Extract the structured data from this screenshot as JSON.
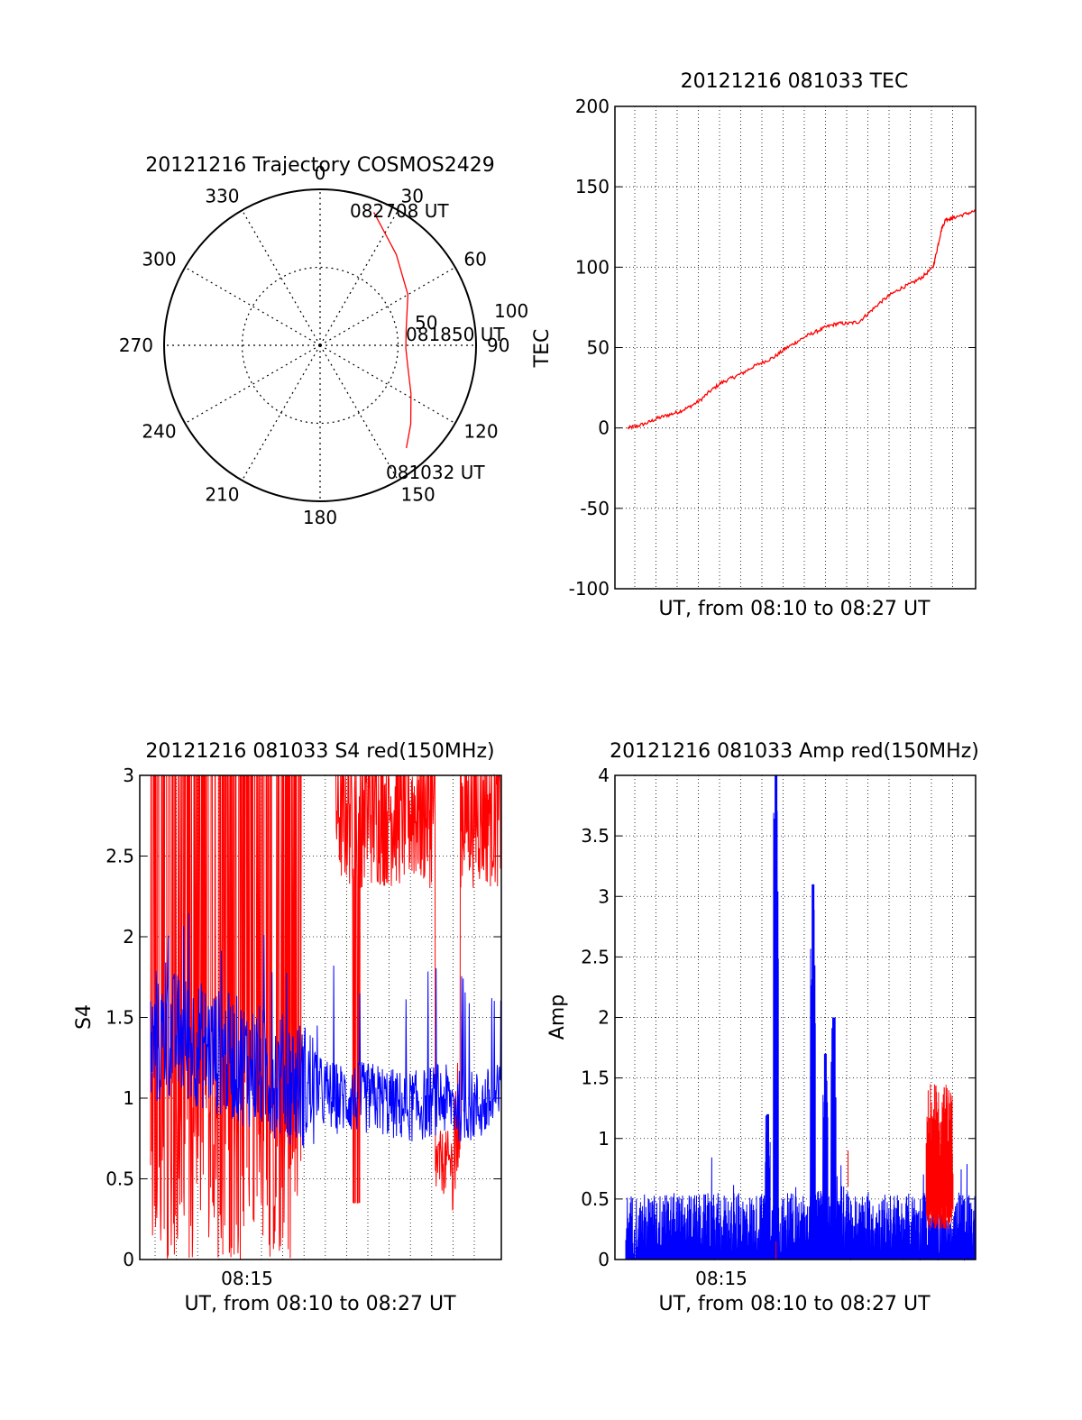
{
  "chart_data": [
    {
      "id": "trajectory",
      "type": "polar",
      "title": "20121216 Trajectory COSMOS2429",
      "angle_labels": [
        "0",
        "30",
        "60",
        "90",
        "120",
        "150",
        "180",
        "210",
        "240",
        "270",
        "300",
        "330"
      ],
      "radial_labels": [
        "50",
        "100"
      ],
      "rmax": 100,
      "trajectory": [
        {
          "az": 22,
          "r": 92
        },
        {
          "az": 40,
          "r": 76
        },
        {
          "az": 60,
          "r": 65
        },
        {
          "az": 80,
          "r": 56
        },
        {
          "az": 92,
          "r": 55
        },
        {
          "az": 104,
          "r": 58
        },
        {
          "az": 118,
          "r": 66
        },
        {
          "az": 131,
          "r": 77
        },
        {
          "az": 140,
          "r": 86
        }
      ],
      "annotations": [
        {
          "text": "082708 UT",
          "at": "end"
        },
        {
          "text": "081850 UT",
          "at": "middle"
        },
        {
          "text": "081032 UT",
          "at": "start"
        }
      ],
      "line_color": "#ff0000"
    },
    {
      "id": "tec",
      "type": "line",
      "title": "20121216 081033 TEC",
      "ylabel": "TEC",
      "xlabel": "UT, from 08:10 to 08:27 UT",
      "ylim": [
        -100,
        200
      ],
      "yticks": [
        "200",
        "150",
        "100",
        "50",
        "0",
        "-50",
        "-100"
      ],
      "xlim_minutes": [
        0,
        17
      ],
      "grid": true,
      "series": [
        {
          "color": "#ff0000",
          "x": [
            0.6,
            1.0,
            1.5,
            2.0,
            2.5,
            3.0,
            3.5,
            4.0,
            4.5,
            5.0,
            5.5,
            6.0,
            6.5,
            7.0,
            7.5,
            8.0,
            8.5,
            9.0,
            9.5,
            10.0,
            10.5,
            11.0,
            11.5,
            12.0,
            12.5,
            13.0,
            13.5,
            14.0,
            14.5,
            15.0,
            15.2,
            15.4,
            15.6,
            15.8,
            16.0,
            16.5,
            17.0
          ],
          "values": [
            0,
            1,
            3,
            6,
            8,
            10,
            13,
            17,
            23,
            28,
            31,
            34,
            38,
            41,
            44,
            49,
            53,
            57,
            60,
            63,
            65,
            65,
            66,
            72,
            78,
            83,
            87,
            90,
            94,
            100,
            112,
            124,
            130,
            130,
            131,
            133,
            135
          ]
        }
      ]
    },
    {
      "id": "s4",
      "type": "line",
      "title": "20121216 081033 S4 red(150MHz)",
      "ylabel": "S4",
      "xlabel": "UT, from 08:10 to 08:27 UT",
      "xtick_labels": [
        "08:15"
      ],
      "ylim": [
        0,
        3
      ],
      "yticks": [
        "3",
        "2.5",
        "2",
        "1.5",
        "1",
        "0.5",
        "0"
      ],
      "xlim_minutes": [
        0,
        17
      ],
      "grid": true,
      "series": [
        {
          "color": "#ff0000",
          "x": [
            0,
            1,
            2,
            3,
            4,
            5,
            6,
            7,
            8,
            9,
            10,
            11,
            12,
            13,
            14,
            15,
            16,
            17
          ],
          "values": [
            3,
            3,
            3,
            3,
            3,
            3,
            3,
            2,
            2.5,
            2.5,
            2.5,
            2.5,
            2.5,
            2.5,
            0.5,
            2.5,
            2.5,
            2.5
          ]
        },
        {
          "color": "#0000ff",
          "x": [
            0,
            1,
            2,
            3,
            4,
            5,
            6,
            7,
            8,
            9,
            10,
            11,
            12,
            13,
            14,
            15,
            16,
            17
          ],
          "values": [
            1.3,
            1.4,
            1.35,
            1.3,
            1.25,
            1.2,
            1.15,
            1.1,
            1.05,
            1.0,
            1.0,
            1.0,
            0.95,
            0.95,
            1.0,
            0.95,
            0.95,
            1.0
          ]
        }
      ]
    },
    {
      "id": "amp",
      "type": "line",
      "title": "20121216 081033 Amp red(150MHz)",
      "ylabel": "Amp",
      "xlabel": "UT, from 08:10 to 08:27 UT",
      "xtick_labels": [
        "08:15"
      ],
      "ylim": [
        0,
        4
      ],
      "yticks": [
        "4",
        "3.5",
        "3",
        "2.5",
        "2",
        "1.5",
        "1",
        "0.5",
        "0"
      ],
      "xlim_minutes": [
        0,
        17
      ],
      "grid": true,
      "series": [
        {
          "color": "#0000ff",
          "peaks": [
            {
              "x": 7.3,
              "value": 4.0
            },
            {
              "x": 9.1,
              "value": 3.1
            },
            {
              "x": 10.1,
              "value": 2.0
            },
            {
              "x": 9.7,
              "value": 1.7
            },
            {
              "x": 6.9,
              "value": 1.2
            }
          ],
          "baseline": 0.55
        },
        {
          "color": "#ff0000",
          "peaks": [
            {
              "x": 15.2,
              "value": 1.45
            },
            {
              "x": 10.8,
              "value": 0.9
            }
          ],
          "baseline": 0.6
        }
      ]
    }
  ]
}
